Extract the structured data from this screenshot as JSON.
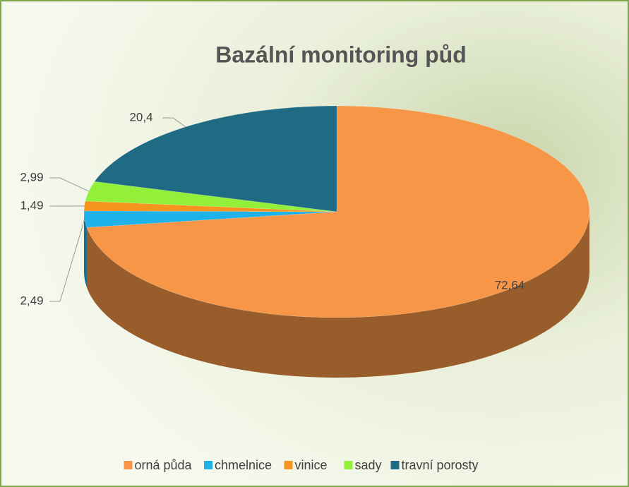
{
  "chart_data": {
    "type": "pie",
    "title": "Bazální monitoring půd",
    "categories": [
      "orná půda",
      "chmelnice",
      "vinice",
      "sady",
      "travní porosty"
    ],
    "values": [
      72.64,
      2.49,
      1.49,
      2.99,
      20.4
    ],
    "value_labels": [
      "72,64",
      "2,49",
      "1,49",
      "2,99",
      "20,4"
    ],
    "colors": [
      "#f79646",
      "#1fb2e8",
      "#f7941d",
      "#92f03a",
      "#1f6b84"
    ],
    "legend": "bottom"
  }
}
